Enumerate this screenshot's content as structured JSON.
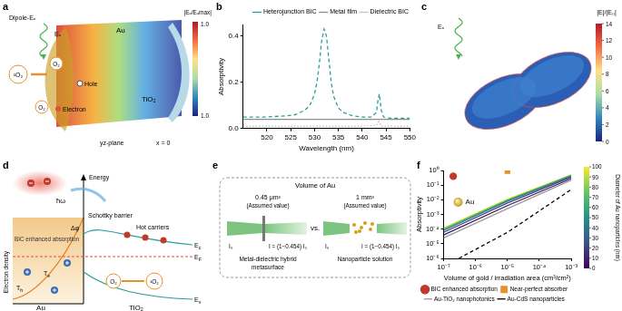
{
  "figure": {
    "a": {
      "label": "a",
      "dipole": "Dipole-Eₓ",
      "field": "Eₓ",
      "metal": "Au",
      "oxide": "TiO₂",
      "o2_top": "O₂",
      "hole": "Hole",
      "electron": "Electron",
      "o2_bottom": "O₂",
      "singlet": "¹O₂",
      "plane": "yz-plane",
      "position": "x = 0",
      "colorbar": {
        "title": "|Eₓ/Eₓmax|",
        "top": "1.0",
        "bottom": "1.0"
      }
    },
    "c": {
      "label": "c",
      "field": "Eₓ",
      "colorbar": {
        "title": "|E|/|E₀|",
        "range": [
          0,
          14
        ],
        "ticks": [
          0,
          2,
          4,
          6,
          8,
          10,
          12,
          14
        ]
      }
    },
    "d": {
      "label": "d",
      "photon": "ħω",
      "barrier_height": "Δφ",
      "absorption": "BIC enhanced absorption",
      "schottky": "Schottky barrier",
      "hot": "Hot carriers",
      "energy": "Energy",
      "density": "Electron density",
      "ec": {
        "text": "E",
        "sub": "c"
      },
      "ef": {
        "text": "E",
        "sub": "F"
      },
      "ev": {
        "text": "E",
        "sub": "v"
      },
      "th": {
        "text": "T",
        "sub": "h"
      },
      "te": {
        "text": "T",
        "sub": "e"
      },
      "o2": "O₂",
      "singlet": "¹O₂",
      "metal": "Au",
      "oxide": "TiO₂"
    },
    "e": {
      "label": "e",
      "title": "Volume of Au",
      "left_volume": "0.45 μm³",
      "right_volume": "1 mm³",
      "assumed": "(Assumed value)",
      "vs": "vs.",
      "incident": "I₀",
      "transmitted": "I = (1−0.454) I₀",
      "left_name": [
        "Metal-dielectric hybrid",
        "metasurface"
      ],
      "right_name": [
        "Nanoparticle solution"
      ]
    }
  },
  "chart_data": [
    {
      "panel": "b",
      "type": "line",
      "xlabel": "Wavelength (nm)",
      "ylabel": "Absorptivity",
      "xlim": [
        515,
        550
      ],
      "xticks": [
        520,
        525,
        530,
        535,
        540,
        545,
        550
      ],
      "ylim": [
        0,
        0.45
      ],
      "yticks": [
        {
          "value": 0,
          "label": "0.0"
        },
        0.2,
        0.4
      ],
      "grid": false,
      "legend": "top-right",
      "series": [
        {
          "name": "Heterojunction BIC",
          "color": "#2a9d9a",
          "line_style": "dashed",
          "x": [
            515,
            520,
            524,
            526,
            528,
            529,
            530,
            530.5,
            531,
            531.5,
            532,
            532.5,
            533,
            533.5,
            534,
            535,
            536,
            538,
            540,
            542,
            543,
            543.3,
            543.6,
            544,
            544.5,
            546,
            550
          ],
          "values": [
            0.05,
            0.05,
            0.055,
            0.06,
            0.08,
            0.1,
            0.15,
            0.2,
            0.28,
            0.38,
            0.43,
            0.4,
            0.3,
            0.2,
            0.14,
            0.09,
            0.07,
            0.055,
            0.05,
            0.05,
            0.07,
            0.12,
            0.15,
            0.08,
            0.05,
            0.045,
            0.045
          ]
        },
        {
          "name": "Metal film",
          "color": "#8c8c8c",
          "line_style": "solid",
          "x": [
            515,
            550
          ],
          "values": [
            0.04,
            0.04
          ]
        },
        {
          "name": "Dielectric BIC",
          "color": "#c4c4c4",
          "line_style": "dotted",
          "x": [
            515,
            540,
            543,
            543.5,
            544,
            546,
            550
          ],
          "values": [
            0.01,
            0.01,
            0.015,
            0.03,
            0.01,
            0.01,
            0.01
          ]
        }
      ]
    },
    {
      "panel": "f",
      "type": "line",
      "log": true,
      "xlabel": "Volume of gold / irradiation area (cm³/cm²)",
      "ylabel": "Absorptivity",
      "xlim": [
        1e-07,
        0.001
      ],
      "xticks": [
        {
          "value": 1e-07,
          "label": "10⁻⁷"
        },
        {
          "value": 1e-06,
          "label": "10⁻⁶"
        },
        {
          "value": 1e-05,
          "label": "10⁻⁵"
        },
        {
          "value": 0.0001,
          "label": "10⁻⁴"
        },
        {
          "value": 0.001,
          "label": "10⁻³"
        }
      ],
      "ylim": [
        1e-06,
        1
      ],
      "yticks": [
        {
          "value": 1e-06,
          "label": "10⁻⁶"
        },
        {
          "value": 1e-05,
          "label": "10⁻⁵"
        },
        {
          "value": 0.0001,
          "label": "10⁻⁴"
        },
        {
          "value": 0.001,
          "label": "10⁻³"
        },
        {
          "value": 0.01,
          "label": "10⁻²"
        },
        {
          "value": 0.1,
          "label": "10⁻¹"
        },
        {
          "value": 1,
          "label": "10⁰"
        }
      ],
      "grid": false,
      "legend": "bottom",
      "annotation": "Au",
      "series": [
        {
          "name": "BIC enhanced absorption",
          "type": "scatter",
          "color": "#c0392b",
          "marker": "circle",
          "x": [
            2e-07
          ],
          "values": [
            0.4
          ]
        },
        {
          "name": "Near-perfect absorber",
          "type": "scatter",
          "color": "#e8912d",
          "marker": "square",
          "x": [
            1e-05
          ],
          "values": [
            0.9
          ]
        },
        {
          "name": "Au-TiO₂ nanophotonics",
          "color": "#9a9a9a",
          "line_style": "solid",
          "x": [
            1e-07,
            1e-05,
            0.001
          ],
          "values": [
            2.5e-05,
            0.0025,
            0.22
          ]
        },
        {
          "name": "Au-CdS nanoparticles",
          "color": "#000000",
          "line_style": "dashed",
          "x": [
            3e-07,
            1e-05,
            0.001
          ],
          "values": [
            1e-06,
            6e-05,
            0.05
          ]
        }
      ],
      "diameter_series": [
        {
          "diameter": 5,
          "x": [
            1e-07,
            1e-05,
            0.001
          ],
          "values": [
            4e-05,
            0.004,
            0.28
          ]
        },
        {
          "diameter": 20,
          "x": [
            1e-07,
            1e-05,
            0.001
          ],
          "values": [
            6e-05,
            0.006,
            0.35
          ]
        },
        {
          "diameter": 40,
          "x": [
            1e-07,
            1e-05,
            0.001
          ],
          "values": [
            8e-05,
            0.008,
            0.4
          ]
        },
        {
          "diameter": 60,
          "x": [
            1e-07,
            1e-05,
            0.001
          ],
          "values": [
            9.5e-05,
            0.009,
            0.45
          ]
        },
        {
          "diameter": 80,
          "x": [
            1e-07,
            1e-05,
            0.001
          ],
          "values": [
            0.00011,
            0.01,
            0.48
          ]
        },
        {
          "diameter": 100,
          "x": [
            1e-07,
            1e-05,
            0.001
          ],
          "values": [
            0.00012,
            0.011,
            0.5
          ]
        }
      ],
      "colorbar": {
        "title": "Diameter of Au nanoparticles (nm)",
        "range": [
          0,
          100
        ],
        "ticks": [
          0,
          10,
          20,
          30,
          40,
          50,
          60,
          70,
          80,
          90,
          100
        ]
      }
    }
  ]
}
